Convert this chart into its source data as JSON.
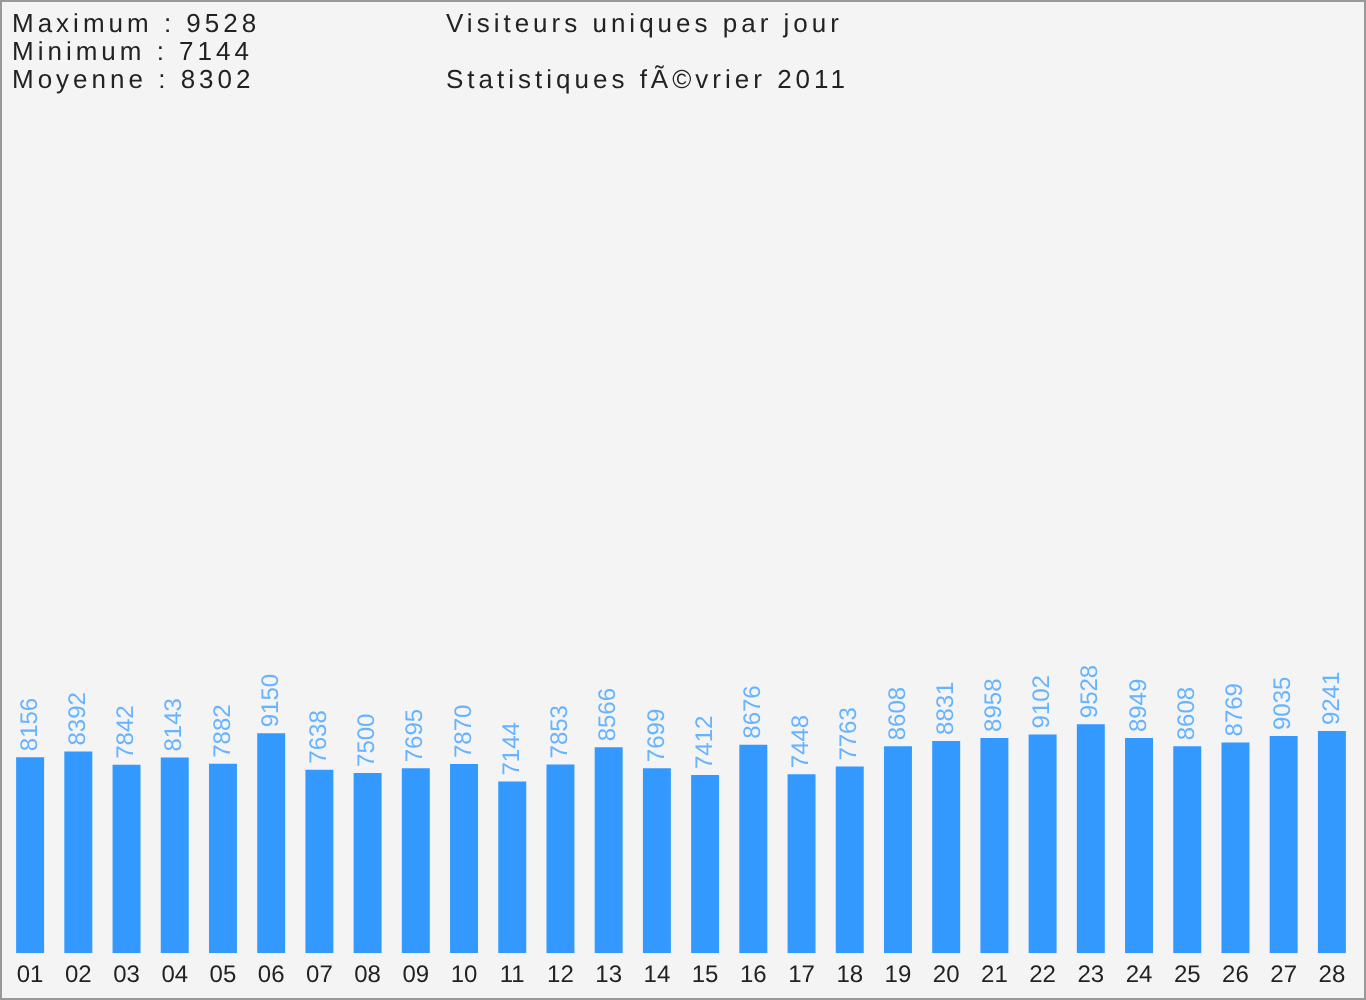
{
  "chart_data": {
    "type": "bar",
    "title": "Visiteurs uniques par jour",
    "subtitle": "Statistiques fÃ©vrier 2011",
    "annotations": [
      "Maximum : 9528",
      "Minimum : 7144",
      "Moyenne : 8302"
    ],
    "categories": [
      "01",
      "02",
      "03",
      "04",
      "05",
      "06",
      "07",
      "08",
      "09",
      "10",
      "11",
      "12",
      "13",
      "14",
      "15",
      "16",
      "17",
      "18",
      "19",
      "20",
      "21",
      "22",
      "23",
      "24",
      "25",
      "26",
      "27",
      "28"
    ],
    "values": [
      8156,
      8392,
      7842,
      8143,
      7882,
      9150,
      7638,
      7500,
      7695,
      7870,
      7144,
      7853,
      8566,
      7699,
      7412,
      8676,
      7448,
      7763,
      8608,
      8831,
      8958,
      9102,
      9528,
      8949,
      8608,
      8769,
      9035,
      9241
    ],
    "color": "#3399ff",
    "data_labels": true,
    "grid": false,
    "legend": false,
    "tick_labels": "x"
  }
}
